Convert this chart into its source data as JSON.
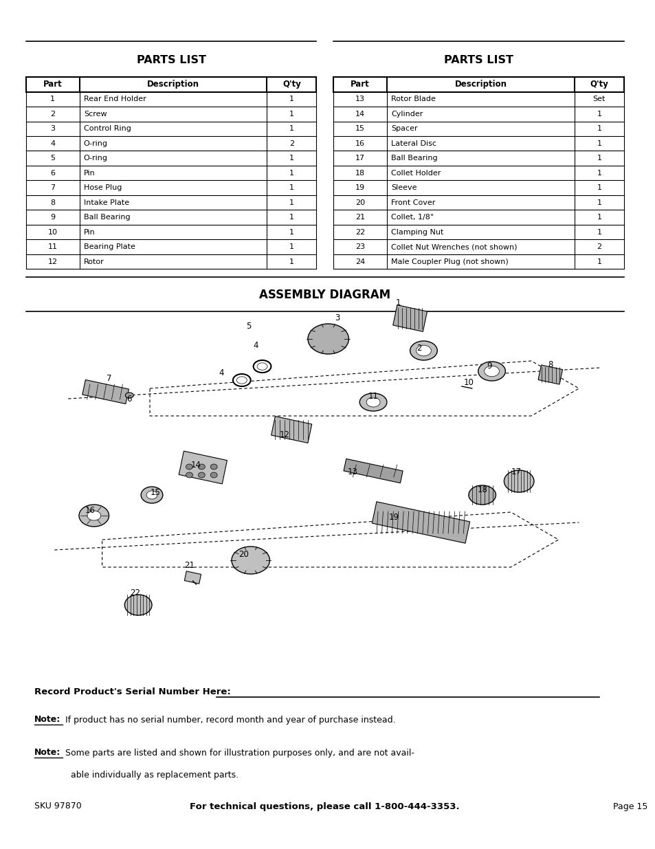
{
  "bg_color": "#ffffff",
  "title1": "PARTS LIST",
  "title2": "PARTS LIST",
  "assembly_title": "ASSEMBLY DIAGRAM",
  "table1_headers": [
    "Part",
    "Description",
    "Q'ty"
  ],
  "table1_rows": [
    [
      "1",
      "Rear End Holder",
      "1"
    ],
    [
      "2",
      "Screw",
      "1"
    ],
    [
      "3",
      "Control Ring",
      "1"
    ],
    [
      "4",
      "O-ring",
      "2"
    ],
    [
      "5",
      "O-ring",
      "1"
    ],
    [
      "6",
      "Pin",
      "1"
    ],
    [
      "7",
      "Hose Plug",
      "1"
    ],
    [
      "8",
      "Intake Plate",
      "1"
    ],
    [
      "9",
      "Ball Bearing",
      "1"
    ],
    [
      "10",
      "Pin",
      "1"
    ],
    [
      "11",
      "Bearing Plate",
      "1"
    ],
    [
      "12",
      "Rotor",
      "1"
    ]
  ],
  "table2_headers": [
    "Part",
    "Description",
    "Q'ty"
  ],
  "table2_rows": [
    [
      "13",
      "Rotor Blade",
      "Set"
    ],
    [
      "14",
      "Cylinder",
      "1"
    ],
    [
      "15",
      "Spacer",
      "1"
    ],
    [
      "16",
      "Lateral Disc",
      "1"
    ],
    [
      "17",
      "Ball Bearing",
      "1"
    ],
    [
      "18",
      "Collet Holder",
      "1"
    ],
    [
      "19",
      "Sleeve",
      "1"
    ],
    [
      "20",
      "Front Cover",
      "1"
    ],
    [
      "21",
      "Collet, 1/8\"",
      "1"
    ],
    [
      "22",
      "Clamping Nut",
      "1"
    ],
    [
      "23",
      "Collet Nut Wrenches (not shown)",
      "2"
    ],
    [
      "24",
      "Male Coupler Plug (not shown)",
      "1"
    ]
  ],
  "serial_label": "Record Product's Serial Number Here:",
  "note1_label": "Note:",
  "note1_text": " If product has no serial number, record month and year of purchase instead.",
  "note2_label": "Note:",
  "note2_text1": " Some parts are listed and shown for illustration purposes only, and are not avail-",
  "note2_text2": "able individually as replacement parts.",
  "footer_sku": "SKU 97870",
  "footer_tech": "For technical questions, please call 1-800-444-3353.",
  "footer_page": "Page 15"
}
